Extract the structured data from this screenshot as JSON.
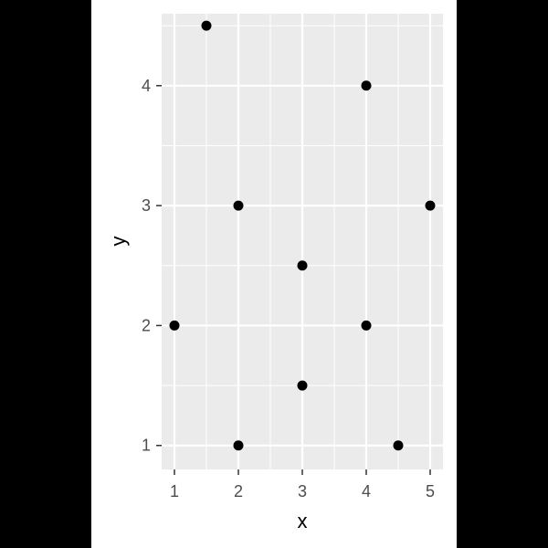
{
  "chart_data": {
    "type": "scatter",
    "title": "",
    "xlabel": "x",
    "ylabel": "y",
    "xlim": [
      0.8,
      5.2
    ],
    "ylim": [
      0.8,
      4.6
    ],
    "x_ticks": [
      1,
      2,
      3,
      4,
      5
    ],
    "y_ticks": [
      1,
      2,
      3,
      4
    ],
    "grid": true,
    "legend": "none",
    "colors": {
      "outer_background": "#000000",
      "plot_frame_background": "#ffffff",
      "panel_background": "#ebebeb",
      "grid": "#ffffff",
      "point": "#000000"
    },
    "points": [
      {
        "x": 1.5,
        "y": 4.5
      },
      {
        "x": 4,
        "y": 4
      },
      {
        "x": 2,
        "y": 3
      },
      {
        "x": 5,
        "y": 3
      },
      {
        "x": 3,
        "y": 2.5
      },
      {
        "x": 1,
        "y": 2
      },
      {
        "x": 4,
        "y": 2
      },
      {
        "x": 3,
        "y": 1.5
      },
      {
        "x": 2,
        "y": 1
      },
      {
        "x": 4.5,
        "y": 1
      }
    ]
  }
}
